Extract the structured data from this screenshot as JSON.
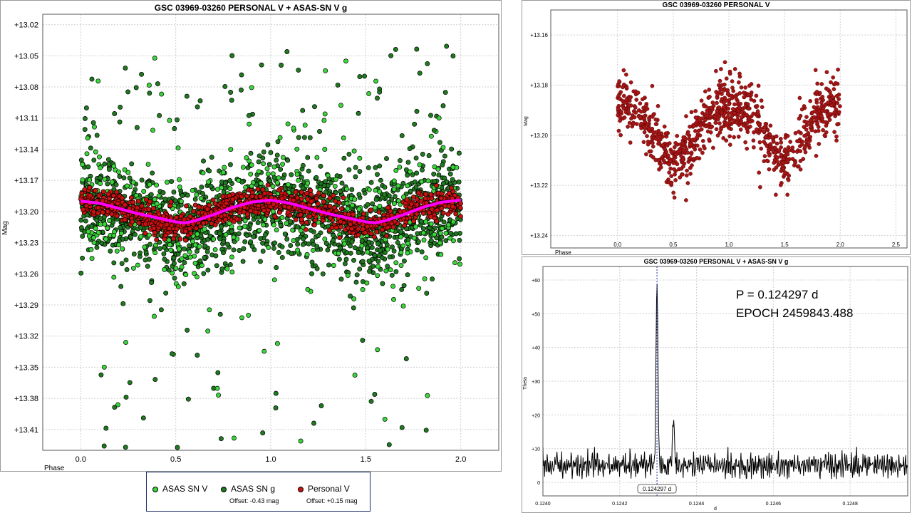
{
  "colors": {
    "asassn_v": "#39d639",
    "asassn_g": "#1f7a1f",
    "personal_v": "#cc1111",
    "personal_v_dark": "#a51717",
    "fit_curve": "#ff00ff",
    "periodogram_line": "#000000",
    "period_marker": "#1e2f99",
    "grid": "#cfcfcf"
  },
  "legend": {
    "items": [
      {
        "label": "ASAS SN V",
        "offset": ""
      },
      {
        "label": "ASAS SN g",
        "offset": "Offset: -0.43 mag"
      },
      {
        "label": "Personal V",
        "offset": "Offset: +0.15 mag"
      }
    ]
  },
  "annotation": {
    "period": "P = 0.124297 d",
    "epoch": "EPOCH 2459843.488"
  },
  "chart_data": [
    {
      "type": "scatter",
      "title": "GSC 03969-03260 PERSONAL V + ASAS-SN V g",
      "xlabel": "Phase",
      "ylabel": "Mag",
      "xlim": [
        -0.2,
        2.2
      ],
      "ylim": [
        13.43,
        13.01
      ],
      "y_inverted": true,
      "grid": true,
      "xticks": [
        "0.0",
        "0.5",
        "1.0",
        "1.5",
        "2.0"
      ],
      "yticks": [
        "+13.02",
        "+13.05",
        "+13.08",
        "+13.11",
        "+13.14",
        "+13.17",
        "+13.20",
        "+13.23",
        "+13.26",
        "+13.29",
        "+13.32",
        "+13.35",
        "+13.38",
        "+13.41"
      ],
      "legend_position": "bottom",
      "series": [
        {
          "name": "ASAS SN V",
          "marker": "circle",
          "description_stats": {
            "center": 13.2,
            "spread_sd": 0.035
          }
        },
        {
          "name": "ASAS SN g",
          "marker": "circle",
          "description_stats": {
            "center": 13.205,
            "spread_sd": 0.03,
            "outlier_range": [
              13.04,
              13.4
            ]
          }
        },
        {
          "name": "Personal V",
          "marker": "circle",
          "description_stats": {
            "center": 13.198,
            "amplitude": 0.012,
            "spread_sd": 0.006
          }
        }
      ],
      "fit_curve": {
        "x": [
          0.0,
          0.1,
          0.2,
          0.3,
          0.4,
          0.5,
          0.55,
          0.6,
          0.7,
          0.8,
          0.9,
          1.0,
          1.1,
          1.2,
          1.3,
          1.4,
          1.5,
          1.55,
          1.6,
          1.7,
          1.8,
          1.9,
          2.0
        ],
        "y": [
          13.19,
          13.192,
          13.197,
          13.202,
          13.206,
          13.21,
          13.211,
          13.209,
          13.203,
          13.196,
          13.191,
          13.189,
          13.192,
          13.197,
          13.202,
          13.206,
          13.21,
          13.211,
          13.209,
          13.203,
          13.196,
          13.191,
          13.189
        ]
      }
    },
    {
      "type": "scatter",
      "title": "GSC 03969-03260 PERSONAL V",
      "xlabel": "Phase",
      "ylabel": "Mag",
      "xlim": [
        -0.6,
        2.6
      ],
      "ylim": [
        13.245,
        13.15
      ],
      "y_inverted": true,
      "grid": true,
      "xticks": [
        "0.0",
        "0.5",
        "1.0",
        "1.5",
        "2.0",
        "2.5"
      ],
      "yticks": [
        "+13.16",
        "+13.18",
        "+13.20",
        "+13.22",
        "+13.24"
      ],
      "series": [
        {
          "name": "Personal V",
          "description_stats": {
            "x_range": [
              0.0,
              2.0
            ],
            "maxima_at": [
              0.0,
              1.0,
              2.0
            ],
            "max_mag": 13.185,
            "min_mag": 13.21,
            "spread_sd": 0.006
          }
        }
      ]
    },
    {
      "type": "line",
      "title": "GSC 03969-03260 PERSONAL V + ASAS-SN V g",
      "xlabel": "d",
      "ylabel": "Theta",
      "xlim": [
        0.124,
        0.12495
      ],
      "ylim": [
        -4,
        64
      ],
      "grid": true,
      "xticks": [
        "0.1240",
        "0.1242",
        "0.1244",
        "0.1246",
        "0.1248"
      ],
      "yticks": [
        "0",
        "+10",
        "+20",
        "+30",
        "+40",
        "+50",
        "+60"
      ],
      "peak": {
        "x": 0.124297,
        "y": 59,
        "label": "0.124297 d"
      },
      "secondary_peak": {
        "x": 0.12434,
        "y": 20
      },
      "baseline": {
        "mean": 5,
        "range": [
          1,
          11
        ]
      }
    }
  ]
}
